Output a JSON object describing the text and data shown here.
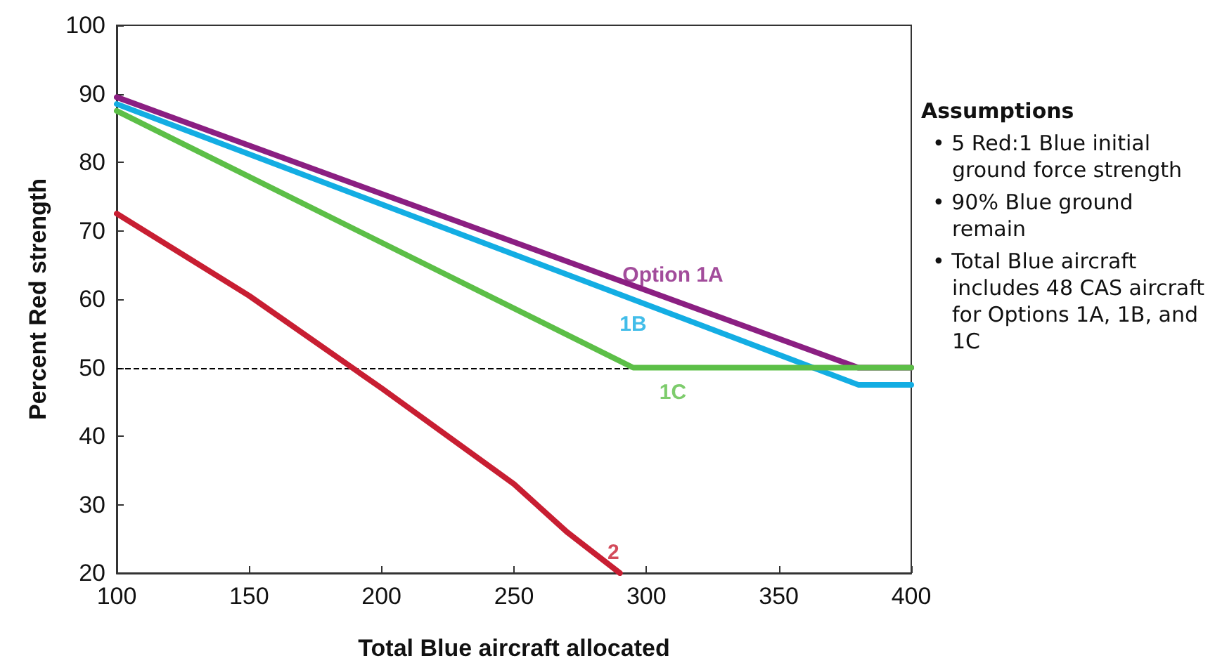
{
  "chart_data": {
    "type": "line",
    "xlabel": "Total Blue aircraft allocated",
    "ylabel": "Percent Red strength",
    "xlim": [
      100,
      400
    ],
    "xticks": [
      100,
      150,
      200,
      250,
      300,
      350,
      400
    ],
    "ylim": [
      20,
      100
    ],
    "yticks": [
      20,
      30,
      40,
      50,
      60,
      70,
      80,
      90,
      100
    ],
    "grid": false,
    "marker": "none",
    "line_style": "solid",
    "series": [
      {
        "name": "Option 1A",
        "color": "#8b1f82",
        "x": [
          100,
          380,
          400
        ],
        "values": [
          89.5,
          50,
          50
        ]
      },
      {
        "name": "1B",
        "color": "#13ade3",
        "x": [
          100,
          380,
          400
        ],
        "values": [
          88.5,
          47.5,
          47.5
        ]
      },
      {
        "name": "1C",
        "color": "#5cbf47",
        "x": [
          100,
          295,
          400
        ],
        "values": [
          87.5,
          50,
          50
        ]
      },
      {
        "name": "2",
        "color": "#c81e32",
        "x": [
          100,
          150,
          200,
          250,
          270,
          290
        ],
        "values": [
          72.5,
          60.5,
          47,
          33,
          26,
          20
        ]
      }
    ],
    "ref_lines": [
      {
        "axis": "y",
        "value": 50,
        "color": "#000000",
        "line_style": "dashed"
      }
    ],
    "annotations": [
      "Assumptions",
      "• 5 Red:1 Blue initial ground force strength",
      "• 90% Blue ground remain",
      "• Total Blue aircraft includes 48 CAS aircraft for Options 1A, 1B, and 1C"
    ]
  }
}
